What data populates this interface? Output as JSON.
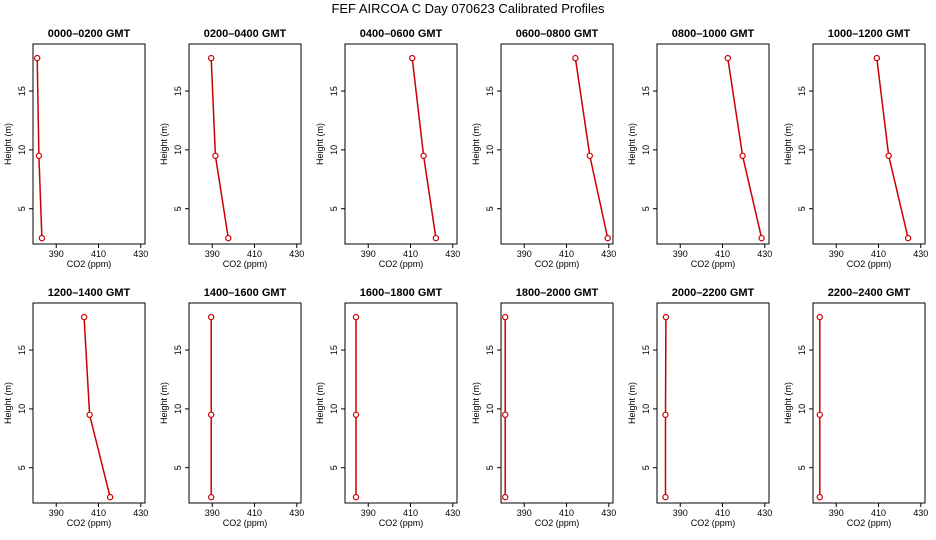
{
  "title": "FEF AIRCOA C  Day 070623  Calibrated Profiles",
  "chart_data": {
    "type": "line",
    "layout": "small multiples, 2 rows x 6 columns",
    "xlabel": "CO2 (ppm)",
    "ylabel": "Height (m)",
    "xlim": [
      379,
      432
    ],
    "ylim": [
      2,
      19
    ],
    "xticks": [
      390,
      410,
      430
    ],
    "yticks": [
      5,
      10,
      15
    ],
    "heights": [
      2.5,
      9.5,
      17.8
    ],
    "series_color": "#cc0000",
    "panels": [
      {
        "title": "0000–0200 GMT",
        "co2": [
          383.2,
          381.8,
          381.0
        ]
      },
      {
        "title": "0200–0400 GMT",
        "co2": [
          397.6,
          391.5,
          389.5
        ]
      },
      {
        "title": "0400–0600 GMT",
        "co2": [
          422.0,
          416.2,
          410.8
        ]
      },
      {
        "title": "0600–0800 GMT",
        "co2": [
          429.5,
          421.0,
          414.2
        ]
      },
      {
        "title": "0800–1000 GMT",
        "co2": [
          428.5,
          419.5,
          412.5
        ]
      },
      {
        "title": "1000–1200 GMT",
        "co2": [
          424.0,
          414.8,
          409.2
        ]
      },
      {
        "title": "1200–1400 GMT",
        "co2": [
          415.5,
          405.8,
          403.2
        ]
      },
      {
        "title": "1400–1600 GMT",
        "co2": [
          389.5,
          389.5,
          389.5
        ]
      },
      {
        "title": "1600–1800 GMT",
        "co2": [
          384.2,
          384.2,
          384.2
        ]
      },
      {
        "title": "1800–2000 GMT",
        "co2": [
          381.0,
          381.0,
          381.0
        ]
      },
      {
        "title": "2000–2200 GMT",
        "co2": [
          383.0,
          383.0,
          383.2
        ]
      },
      {
        "title": "2200–2400 GMT",
        "co2": [
          382.2,
          382.2,
          382.2
        ]
      }
    ]
  }
}
